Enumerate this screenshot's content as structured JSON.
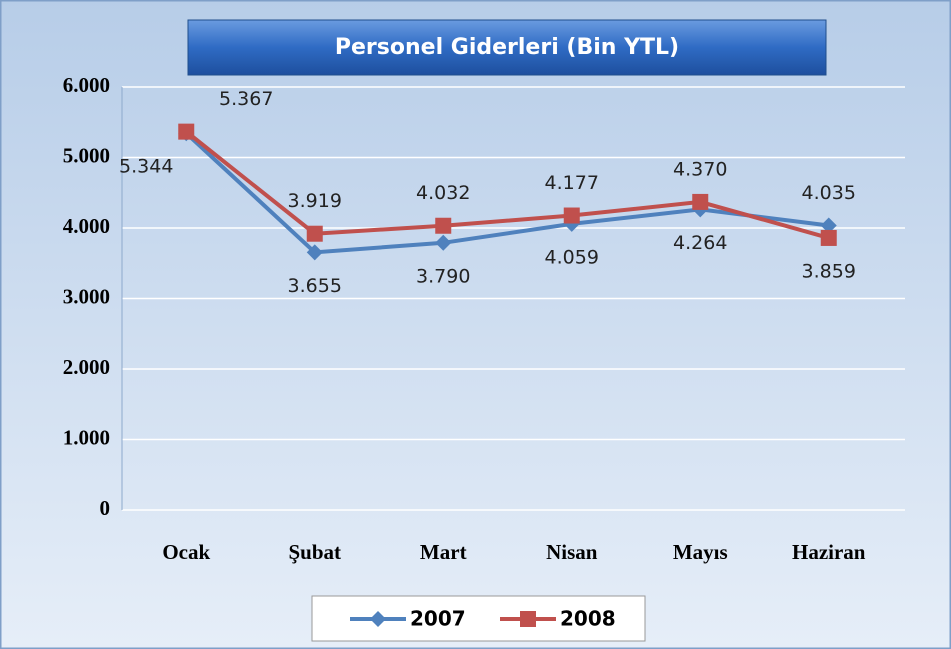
{
  "chart_data": {
    "type": "line",
    "title": "Personel Giderleri (Bin YTL)",
    "categories": [
      "Ocak",
      "Şubat",
      "Mart",
      "Nisan",
      "Mayıs",
      "Haziran"
    ],
    "series": [
      {
        "name": "2007",
        "color": "#4f81bd",
        "values": [
          5344,
          3655,
          3790,
          4059,
          4264,
          4035
        ],
        "value_labels": [
          "5.344",
          "3.655",
          "3.790",
          "4.059",
          "4.264",
          "4.035"
        ]
      },
      {
        "name": "2008",
        "color": "#c0504d",
        "values": [
          5367,
          3919,
          4032,
          4177,
          4370,
          3859
        ],
        "value_labels": [
          "5.367",
          "3.919",
          "4.032",
          "4.177",
          "4.370",
          "3.859"
        ]
      }
    ],
    "ylim": [
      0,
      6000
    ],
    "yticks": [
      0,
      {
        "value": 1000,
        "label": "1.000"
      },
      {
        "value": 2000,
        "label": "2.000"
      },
      {
        "value": 3000,
        "label": "3.000"
      },
      {
        "value": 4000,
        "label": "4.000"
      },
      {
        "value": 5000,
        "label": "5.000"
      },
      {
        "value": 6000,
        "label": "6.000"
      }
    ],
    "grid": true,
    "legend": "bottom"
  }
}
